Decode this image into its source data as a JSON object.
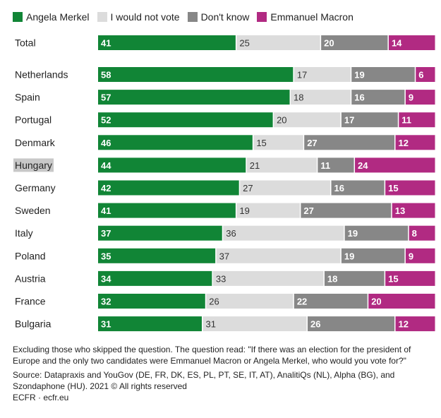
{
  "chart_data": {
    "type": "bar",
    "orientation": "horizontal",
    "stacked": true,
    "categories": [
      "Total",
      "Netherlands",
      "Spain",
      "Portugal",
      "Denmark",
      "Hungary",
      "Germany",
      "Sweden",
      "Italy",
      "Poland",
      "Austria",
      "France",
      "Bulgaria"
    ],
    "series": [
      {
        "name": "Angela Merkel",
        "color": "#118536",
        "label_color": "#ffffff",
        "label_bold": true,
        "values": [
          41,
          58,
          57,
          52,
          46,
          44,
          42,
          41,
          37,
          35,
          34,
          32,
          31
        ]
      },
      {
        "name": "I would not vote",
        "color": "#dcdcdc",
        "label_color": "#333333",
        "label_bold": false,
        "values": [
          25,
          17,
          18,
          20,
          15,
          21,
          27,
          19,
          36,
          37,
          33,
          26,
          31
        ]
      },
      {
        "name": "Don't know",
        "color": "#878787",
        "label_color": "#ffffff",
        "label_bold": true,
        "values": [
          20,
          19,
          16,
          17,
          27,
          11,
          16,
          27,
          19,
          19,
          18,
          22,
          26
        ]
      },
      {
        "name": "Emmanuel Macron",
        "color": "#b12a82",
        "label_color": "#ffffff",
        "label_bold": true,
        "values": [
          14,
          6,
          9,
          11,
          12,
          24,
          15,
          13,
          8,
          9,
          15,
          20,
          12
        ]
      }
    ],
    "highlight_category": "Hungary",
    "legend_position": "top-left",
    "xlim": [
      0,
      100
    ]
  },
  "notes": {
    "question": "Excluding those who skipped the question. The question read: \"If there was an election for the president of Europe and the only two candidates were Emmanuel Macron or Angela Merkel, who would you vote for?\"",
    "source": "Source: Datapraxis and YouGov (DE, FR, DK, ES, PL, PT, SE, IT, AT), AnalitiQs (NL), Alpha (BG), and Szondaphone (HU). 2021 © All rights reserved",
    "credit": "ECFR · ecfr.eu"
  }
}
